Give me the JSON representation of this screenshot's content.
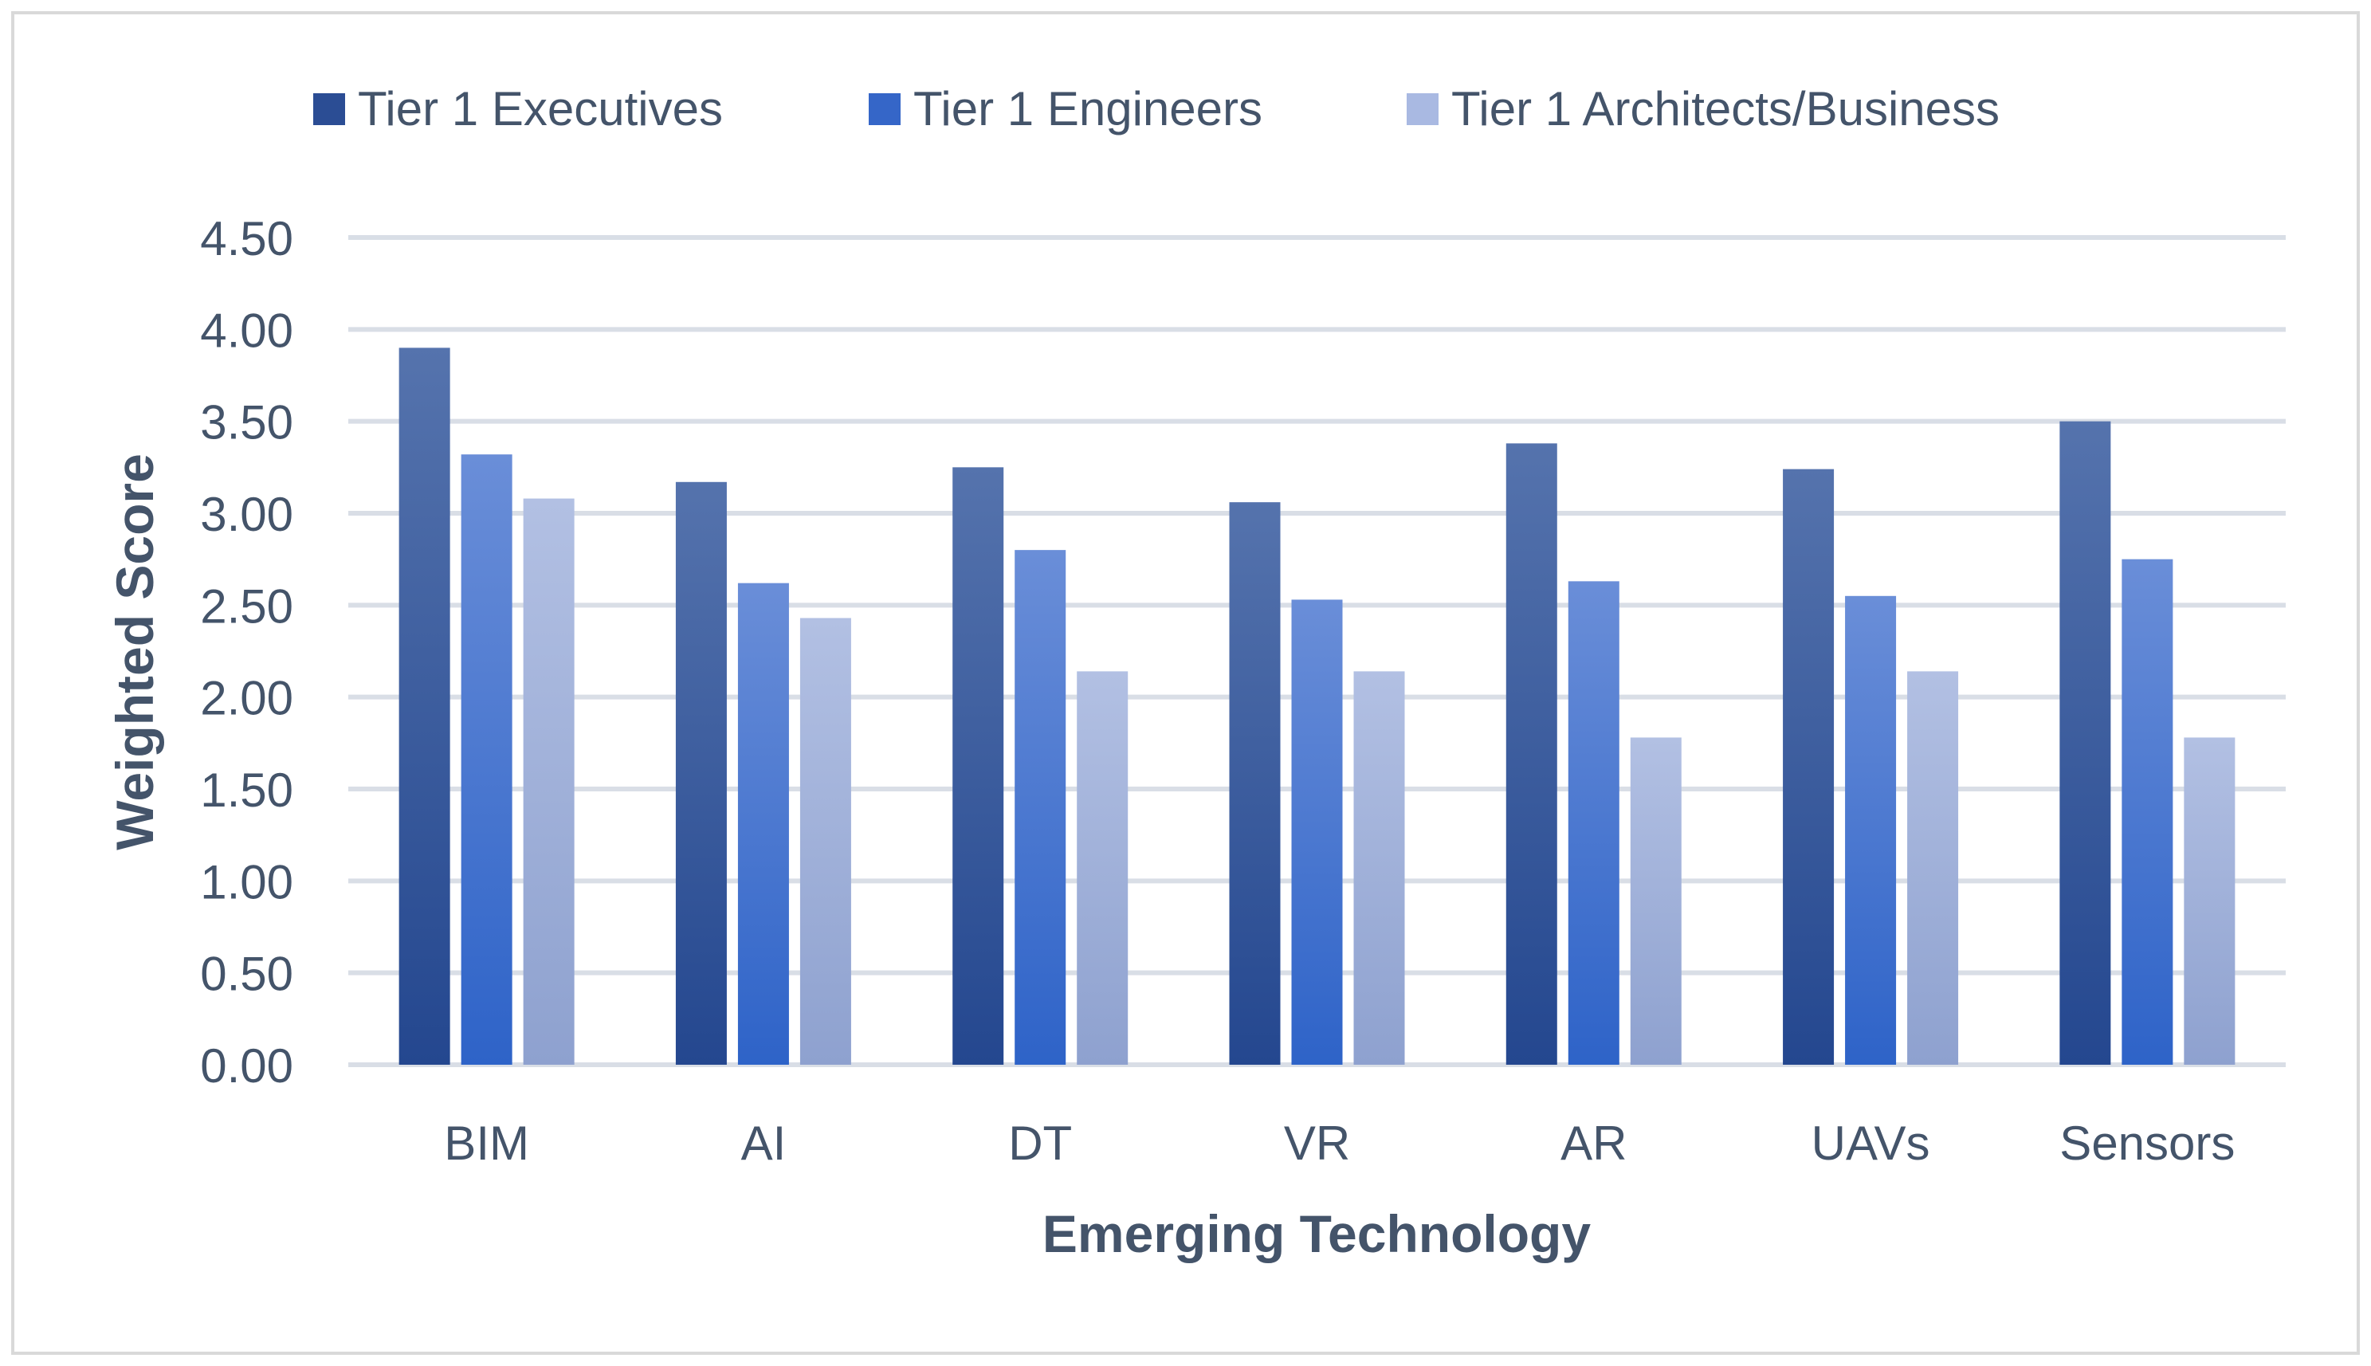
{
  "chart_data": {
    "type": "bar",
    "title": "",
    "xlabel": "Emerging Technology",
    "ylabel": "Weighted Score",
    "ylim": [
      0,
      4.5
    ],
    "ytick_step": 0.5,
    "yticks": [
      "0.00",
      "0.50",
      "1.00",
      "1.50",
      "2.00",
      "2.50",
      "3.00",
      "3.50",
      "4.00",
      "4.50"
    ],
    "grid": true,
    "legend_position": "top",
    "categories": [
      "BIM",
      "AI",
      "DT",
      "VR",
      "AR",
      "UAVs",
      "Sensors"
    ],
    "series": [
      {
        "name": "Tier 1 Executives",
        "values": [
          3.9,
          3.17,
          3.25,
          3.06,
          3.38,
          3.24,
          3.5
        ]
      },
      {
        "name": "Tier 1 Engineers",
        "values": [
          3.32,
          2.62,
          2.8,
          2.53,
          2.63,
          2.55,
          2.75
        ]
      },
      {
        "name": "Tier 1 Architects/Business",
        "values": [
          3.08,
          2.43,
          2.14,
          2.14,
          1.78,
          2.14,
          1.78
        ]
      }
    ]
  },
  "colors": {
    "text": "#44546A",
    "grid": "#D9DEE6",
    "frame": "#D9D9D9",
    "series_top": [
      "#5573AD",
      "#6A8ED8",
      "#B2C0E3"
    ],
    "series_bottom": [
      "#24478F",
      "#2E63C8",
      "#8EA1CF"
    ],
    "legend_swatch": [
      "#2B4D94",
      "#3566C8",
      "#A9B9E2"
    ]
  }
}
